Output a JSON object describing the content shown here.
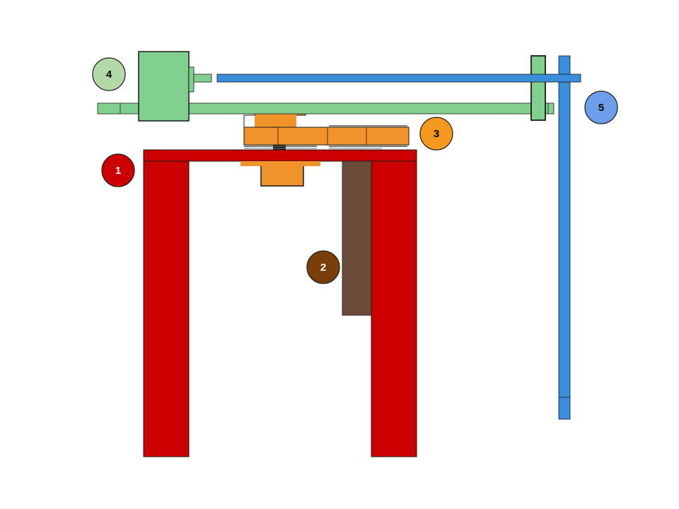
{
  "colors": {
    "frame": "#CC0000",
    "bracket": "#6B4C3A",
    "gear": "#F0932A",
    "motor_assembly": "#82D090",
    "blue_rail": "#3A8EDB",
    "outline": "#1a1a1a"
  },
  "markers": [
    {
      "id": "marker-1",
      "label": "1",
      "fill": "#CC0000",
      "text_color": "#FFFFFF"
    },
    {
      "id": "marker-2",
      "label": "2",
      "fill": "#7A3E0A",
      "text_color": "#FFFFFF"
    },
    {
      "id": "marker-3",
      "label": "3",
      "fill": "#F59A1E",
      "text_color": "#000000"
    },
    {
      "id": "marker-4",
      "label": "4",
      "fill": "#B3D9A8",
      "text_color": "#000000"
    },
    {
      "id": "marker-5",
      "label": "5",
      "fill": "#6D9EEB",
      "text_color": "#000000"
    }
  ]
}
